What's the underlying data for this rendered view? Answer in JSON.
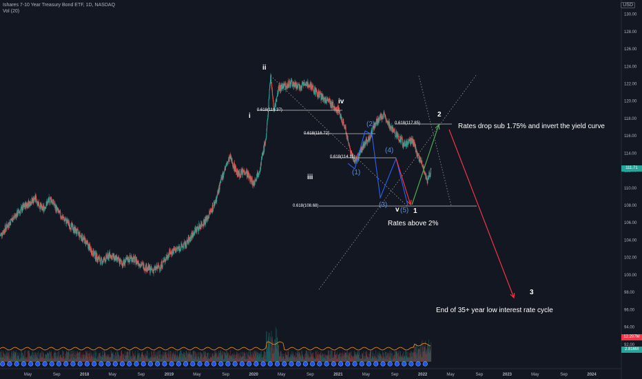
{
  "legend": {
    "symbol_line": "Ishares 7-10 Year Treasury Bond ETF, 1D, NASDAQ",
    "volume_line": "Vol (20)"
  },
  "currency": "USD",
  "badges": {
    "last_price": "111.71",
    "vol_red": "12.297M",
    "vol_green": "2.816M"
  },
  "annotations": {
    "rates_drop": "Rates drop sub 1.75% and invert the yield curve",
    "rates_above": "Rates above 2%",
    "end_cycle": "End of 35+ year low interest rate cycle"
  },
  "waves": {
    "ii": "ii",
    "i": "i",
    "iii": "iii",
    "iv": "iv",
    "v": "v",
    "w1": "1",
    "w2": "2",
    "w3": "3",
    "s1": "(1)",
    "s2": "(2)",
    "s3": "(3)",
    "s4": "(4)",
    "s5": "(5)"
  },
  "fib_labels": {
    "f1": "0.618(119.37)",
    "f2": "0.618(116.72)",
    "f3": "0.618(114.11)",
    "f4": "0.618(108.68)",
    "f5": "0.618(117.85)"
  },
  "chart_data": {
    "type": "candlestick",
    "title": "Ishares 7-10 Year Treasury Bond ETF, 1D, NASDAQ",
    "ylim": [
      90,
      131
    ],
    "y_ticks": [
      92,
      94,
      96,
      98,
      100,
      102,
      104,
      106,
      108,
      110,
      112,
      114,
      116,
      118,
      120,
      122,
      124,
      126,
      128,
      130
    ],
    "x_ticks": [
      "May",
      "Sep",
      "2018",
      "May",
      "Sep",
      "2019",
      "May",
      "Sep",
      "2020",
      "May",
      "Sep",
      "2021",
      "May",
      "Sep",
      "2022",
      "May",
      "Sep",
      "2023",
      "May",
      "Sep",
      "2024"
    ],
    "x_tick_times": [
      2017.33,
      2017.67,
      2018.0,
      2018.33,
      2018.67,
      2019.0,
      2019.33,
      2019.67,
      2020.0,
      2020.33,
      2020.67,
      2021.0,
      2021.33,
      2021.67,
      2022.0,
      2022.33,
      2022.67,
      2023.0,
      2023.33,
      2023.67,
      2024.0
    ],
    "xlim": [
      2017.0,
      2024.35
    ],
    "price_path": [
      [
        2017.0,
        104.5
      ],
      [
        2017.15,
        106.5
      ],
      [
        2017.3,
        108.0
      ],
      [
        2017.42,
        108.8
      ],
      [
        2017.5,
        107.5
      ],
      [
        2017.6,
        108.8
      ],
      [
        2017.7,
        107.0
      ],
      [
        2017.85,
        105.5
      ],
      [
        2018.0,
        104.0
      ],
      [
        2018.1,
        102.5
      ],
      [
        2018.2,
        101.5
      ],
      [
        2018.3,
        102.3
      ],
      [
        2018.45,
        101.3
      ],
      [
        2018.55,
        102.0
      ],
      [
        2018.7,
        101.0
      ],
      [
        2018.8,
        100.5
      ],
      [
        2018.9,
        101.0
      ],
      [
        2019.0,
        102.5
      ],
      [
        2019.1,
        103.0
      ],
      [
        2019.2,
        103.5
      ],
      [
        2019.3,
        105.0
      ],
      [
        2019.45,
        106.5
      ],
      [
        2019.55,
        108.5
      ],
      [
        2019.65,
        112.0
      ],
      [
        2019.72,
        113.5
      ],
      [
        2019.82,
        111.5
      ],
      [
        2019.9,
        112.0
      ],
      [
        2020.0,
        110.5
      ],
      [
        2020.08,
        112.5
      ],
      [
        2020.15,
        116.0
      ],
      [
        2020.2,
        123.0
      ],
      [
        2020.24,
        119.0
      ],
      [
        2020.3,
        121.5
      ],
      [
        2020.45,
        122.0
      ],
      [
        2020.55,
        121.5
      ],
      [
        2020.6,
        122.3
      ],
      [
        2020.7,
        121.5
      ],
      [
        2020.8,
        120.5
      ],
      [
        2020.9,
        119.8
      ],
      [
        2021.0,
        119.0
      ],
      [
        2021.08,
        117.0
      ],
      [
        2021.15,
        114.0
      ],
      [
        2021.2,
        113.0
      ],
      [
        2021.28,
        114.5
      ],
      [
        2021.35,
        115.5
      ],
      [
        2021.45,
        117.5
      ],
      [
        2021.55,
        118.5
      ],
      [
        2021.62,
        117.0
      ],
      [
        2021.7,
        116.0
      ],
      [
        2021.78,
        115.0
      ],
      [
        2021.88,
        115.5
      ],
      [
        2021.95,
        113.5
      ],
      [
        2022.0,
        112.5
      ],
      [
        2022.05,
        110.8
      ],
      [
        2022.1,
        112.0
      ]
    ],
    "vol_ylim": [
      0,
      60
    ],
    "series_annotations": [
      {
        "label": "Rates drop sub 1.75% and invert the yield curve"
      },
      {
        "label": "Rates above 2%"
      },
      {
        "label": "End of 35+ year low interest rate cycle"
      }
    ]
  },
  "colors": {
    "background": "#131722",
    "up": "#26a69a",
    "down": "#ef5350",
    "fib_line": "#cccccc",
    "green_arrow": "#4caf50",
    "red_arrow": "#f23645",
    "blue_arrow": "#2962ff",
    "trend_dots": "#9e9e9e"
  }
}
